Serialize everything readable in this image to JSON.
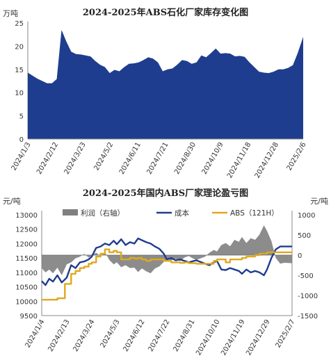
{
  "chart_data": [
    {
      "type": "area",
      "title": "2024-2025年ABS石化厂家库存变化图",
      "unit_label": "万吨",
      "ylim": [
        0,
        25
      ],
      "y_ticks": [
        0,
        5,
        10,
        15,
        20,
        25
      ],
      "x_tick_labels": [
        "2024/1/3",
        "2024/2/12",
        "2024/3/23",
        "2024/5/2",
        "2024/6/11",
        "2024/7/21",
        "2024/8/30",
        "2024/10/9",
        "2024/11/18",
        "2024/12/28",
        "2025/2/6"
      ],
      "x_range": [
        "2024-01-03",
        "2025-02-06"
      ],
      "color": "#1f3d8f",
      "points": [
        [
          "2024-01-03",
          14.3
        ],
        [
          "2024-01-17",
          13.0
        ],
        [
          "2024-01-31",
          12.0
        ],
        [
          "2024-02-07",
          12.0
        ],
        [
          "2024-02-14",
          12.9
        ],
        [
          "2024-02-21",
          23.5
        ],
        [
          "2024-02-28",
          21.0
        ],
        [
          "2024-03-06",
          18.8
        ],
        [
          "2024-03-13",
          18.3
        ],
        [
          "2024-03-20",
          18.2
        ],
        [
          "2024-03-27",
          18.0
        ],
        [
          "2024-04-03",
          17.8
        ],
        [
          "2024-04-10",
          16.8
        ],
        [
          "2024-04-17",
          16.0
        ],
        [
          "2024-04-24",
          15.5
        ],
        [
          "2024-05-01",
          14.2
        ],
        [
          "2024-05-08",
          14.9
        ],
        [
          "2024-05-15",
          14.6
        ],
        [
          "2024-05-22",
          15.5
        ],
        [
          "2024-05-29",
          16.2
        ],
        [
          "2024-06-05",
          16.3
        ],
        [
          "2024-06-12",
          16.5
        ],
        [
          "2024-06-19",
          17.0
        ],
        [
          "2024-06-26",
          17.6
        ],
        [
          "2024-07-03",
          17.3
        ],
        [
          "2024-07-10",
          16.5
        ],
        [
          "2024-07-17",
          14.6
        ],
        [
          "2024-07-24",
          15.0
        ],
        [
          "2024-07-31",
          15.2
        ],
        [
          "2024-08-07",
          16.0
        ],
        [
          "2024-08-14",
          17.0
        ],
        [
          "2024-08-21",
          16.8
        ],
        [
          "2024-08-28",
          16.2
        ],
        [
          "2024-09-04",
          16.5
        ],
        [
          "2024-09-11",
          18.0
        ],
        [
          "2024-09-18",
          17.6
        ],
        [
          "2024-09-25",
          18.5
        ],
        [
          "2024-10-02",
          19.5
        ],
        [
          "2024-10-09",
          18.4
        ],
        [
          "2024-10-16",
          18.5
        ],
        [
          "2024-10-23",
          18.4
        ],
        [
          "2024-10-30",
          17.8
        ],
        [
          "2024-11-06",
          17.9
        ],
        [
          "2024-11-13",
          17.7
        ],
        [
          "2024-11-20",
          16.5
        ],
        [
          "2024-11-27",
          15.5
        ],
        [
          "2024-12-04",
          14.5
        ],
        [
          "2024-12-11",
          14.3
        ],
        [
          "2024-12-18",
          14.2
        ],
        [
          "2024-12-25",
          14.5
        ],
        [
          "2025-01-01",
          15.0
        ],
        [
          "2025-01-08",
          15.0
        ],
        [
          "2025-01-15",
          15.3
        ],
        [
          "2025-01-22",
          15.9
        ],
        [
          "2025-01-29",
          18.5
        ],
        [
          "2025-02-06",
          22.0
        ]
      ]
    },
    {
      "type": "line",
      "title": "2024-2025年国内ABS厂家理论盈亏图",
      "left_unit": "元/吨",
      "right_unit": "元/吨",
      "ylim_left": [
        9500,
        13000
      ],
      "ylim_right": [
        -1500,
        1000
      ],
      "y_ticks_left": [
        9500,
        10000,
        10500,
        11000,
        11500,
        12000,
        12500,
        13000
      ],
      "y_ticks_right": [
        -1500,
        -1000,
        -500,
        0,
        500,
        1000
      ],
      "x_tick_labels": [
        "2024/1/4",
        "2024/2/13",
        "2024/3/24",
        "2024/5/3",
        "2024/6/12",
        "2024/7/22",
        "2024/8/31",
        "2024/10/10",
        "2024/11/19",
        "2024/12/29",
        "2025/2/7"
      ],
      "x_range": [
        "2024-01-04",
        "2025-02-07"
      ],
      "legend": [
        "利润（右轴）",
        "成本",
        "ABS（121H）"
      ],
      "colors": {
        "profit": "#808080",
        "cost": "#1f3d8f",
        "abs": "#e0a81c"
      },
      "series": [
        {
          "name": "利润（右轴）",
          "axis": "right",
          "points": [
            [
              "2024-01-04",
              -320
            ],
            [
              "2024-01-10",
              -430
            ],
            [
              "2024-01-16",
              -360
            ],
            [
              "2024-01-22",
              -450
            ],
            [
              "2024-01-29",
              -310
            ],
            [
              "2024-02-05",
              -500
            ],
            [
              "2024-02-13",
              -230
            ],
            [
              "2024-02-20",
              -180
            ],
            [
              "2024-02-27",
              -80
            ],
            [
              "2024-03-05",
              -40
            ],
            [
              "2024-03-12",
              30
            ],
            [
              "2024-03-19",
              -60
            ],
            [
              "2024-03-24",
              -10
            ],
            [
              "2024-03-31",
              60
            ],
            [
              "2024-04-07",
              -40
            ],
            [
              "2024-04-14",
              80
            ],
            [
              "2024-04-21",
              -120
            ],
            [
              "2024-04-28",
              -230
            ],
            [
              "2024-05-03",
              -180
            ],
            [
              "2024-05-10",
              -300
            ],
            [
              "2024-05-17",
              -250
            ],
            [
              "2024-05-24",
              -320
            ],
            [
              "2024-05-31",
              -310
            ],
            [
              "2024-06-06",
              -420
            ],
            [
              "2024-06-12",
              -330
            ],
            [
              "2024-06-19",
              -400
            ],
            [
              "2024-06-26",
              -450
            ],
            [
              "2024-07-03",
              -330
            ],
            [
              "2024-07-10",
              -280
            ],
            [
              "2024-07-17",
              -170
            ],
            [
              "2024-07-22",
              -100
            ],
            [
              "2024-07-29",
              -130
            ],
            [
              "2024-08-05",
              -90
            ],
            [
              "2024-08-12",
              -150
            ],
            [
              "2024-08-19",
              -60
            ],
            [
              "2024-08-26",
              -20
            ],
            [
              "2024-08-31",
              -70
            ],
            [
              "2024-09-07",
              -120
            ],
            [
              "2024-09-14",
              -80
            ],
            [
              "2024-09-21",
              -40
            ],
            [
              "2024-09-28",
              60
            ],
            [
              "2024-10-05",
              130
            ],
            [
              "2024-10-10",
              90
            ],
            [
              "2024-10-17",
              250
            ],
            [
              "2024-10-24",
              300
            ],
            [
              "2024-10-31",
              220
            ],
            [
              "2024-11-07",
              380
            ],
            [
              "2024-11-14",
              330
            ],
            [
              "2024-11-19",
              450
            ],
            [
              "2024-11-26",
              300
            ],
            [
              "2024-12-03",
              420
            ],
            [
              "2024-12-10",
              380
            ],
            [
              "2024-12-17",
              510
            ],
            [
              "2024-12-24",
              740
            ],
            [
              "2024-12-29",
              600
            ],
            [
              "2025-01-05",
              350
            ],
            [
              "2025-01-12",
              -70
            ],
            [
              "2025-01-19",
              -210
            ],
            [
              "2025-01-26",
              -190
            ],
            [
              "2025-02-07",
              -200
            ]
          ]
        },
        {
          "name": "成本",
          "axis": "left",
          "points": [
            [
              "2024-01-04",
              10700
            ],
            [
              "2024-01-10",
              10560
            ],
            [
              "2024-01-16",
              10780
            ],
            [
              "2024-01-22",
              10680
            ],
            [
              "2024-01-29",
              10900
            ],
            [
              "2024-02-05",
              10650
            ],
            [
              "2024-02-13",
              10820
            ],
            [
              "2024-02-20",
              11250
            ],
            [
              "2024-02-27",
              11150
            ],
            [
              "2024-03-05",
              11350
            ],
            [
              "2024-03-12",
              11380
            ],
            [
              "2024-03-19",
              11450
            ],
            [
              "2024-03-24",
              11550
            ],
            [
              "2024-03-31",
              11850
            ],
            [
              "2024-04-07",
              11900
            ],
            [
              "2024-04-14",
              12000
            ],
            [
              "2024-04-21",
              11950
            ],
            [
              "2024-04-28",
              12100
            ],
            [
              "2024-05-03",
              11980
            ],
            [
              "2024-05-10",
              12150
            ],
            [
              "2024-05-17",
              11950
            ],
            [
              "2024-05-24",
              12050
            ],
            [
              "2024-05-31",
              12000
            ],
            [
              "2024-06-06",
              12180
            ],
            [
              "2024-06-12",
              12120
            ],
            [
              "2024-06-19",
              12050
            ],
            [
              "2024-06-26",
              12000
            ],
            [
              "2024-07-03",
              11900
            ],
            [
              "2024-07-10",
              11820
            ],
            [
              "2024-07-17",
              11650
            ],
            [
              "2024-07-22",
              11450
            ],
            [
              "2024-07-29",
              11500
            ],
            [
              "2024-08-05",
              11420
            ],
            [
              "2024-08-12",
              11450
            ],
            [
              "2024-08-19",
              11400
            ],
            [
              "2024-08-26",
              11350
            ],
            [
              "2024-08-31",
              11380
            ],
            [
              "2024-09-07",
              11420
            ],
            [
              "2024-09-14",
              11360
            ],
            [
              "2024-09-21",
              11300
            ],
            [
              "2024-09-28",
              11250
            ],
            [
              "2024-10-05",
              11350
            ],
            [
              "2024-10-10",
              11400
            ],
            [
              "2024-10-17",
              11100
            ],
            [
              "2024-10-24",
              11080
            ],
            [
              "2024-10-31",
              11150
            ],
            [
              "2024-11-07",
              11100
            ],
            [
              "2024-11-14",
              11050
            ],
            [
              "2024-11-19",
              10950
            ],
            [
              "2024-11-26",
              11100
            ],
            [
              "2024-12-03",
              11000
            ],
            [
              "2024-12-10",
              11050
            ],
            [
              "2024-12-17",
              11000
            ],
            [
              "2024-12-24",
              10900
            ],
            [
              "2024-12-29",
              11100
            ],
            [
              "2025-01-05",
              11500
            ],
            [
              "2025-01-12",
              11800
            ],
            [
              "2025-01-19",
              11900
            ],
            [
              "2025-01-26",
              11900
            ],
            [
              "2025-02-07",
              11900
            ]
          ]
        },
        {
          "name": "ABS（121H）",
          "axis": "left",
          "points": [
            [
              "2024-01-04",
              10050
            ],
            [
              "2024-01-16",
              10050
            ],
            [
              "2024-01-29",
              10100
            ],
            [
              "2024-02-05",
              10100
            ],
            [
              "2024-02-10",
              10600
            ],
            [
              "2024-02-13",
              10600
            ],
            [
              "2024-02-20",
              10950
            ],
            [
              "2024-02-27",
              11050
            ],
            [
              "2024-03-05",
              11150
            ],
            [
              "2024-03-12",
              11200
            ],
            [
              "2024-03-19",
              11300
            ],
            [
              "2024-03-24",
              11350
            ],
            [
              "2024-03-31",
              11550
            ],
            [
              "2024-04-07",
              11650
            ],
            [
              "2024-04-14",
              11800
            ],
            [
              "2024-04-21",
              11700
            ],
            [
              "2024-04-28",
              11750
            ],
            [
              "2024-05-03",
              11700
            ],
            [
              "2024-05-10",
              11450
            ],
            [
              "2024-05-17",
              11450
            ],
            [
              "2024-05-24",
              11500
            ],
            [
              "2024-05-31",
              11480
            ],
            [
              "2024-06-06",
              11500
            ],
            [
              "2024-06-12",
              11450
            ],
            [
              "2024-06-19",
              11400
            ],
            [
              "2024-06-26",
              11450
            ],
            [
              "2024-07-03",
              11450
            ],
            [
              "2024-07-10",
              11450
            ],
            [
              "2024-07-17",
              11400
            ],
            [
              "2024-07-22",
              11400
            ],
            [
              "2024-07-29",
              11350
            ],
            [
              "2024-08-05",
              11350
            ],
            [
              "2024-08-12",
              11330
            ],
            [
              "2024-08-19",
              11350
            ],
            [
              "2024-08-26",
              11320
            ],
            [
              "2024-08-31",
              11320
            ],
            [
              "2024-09-07",
              11300
            ],
            [
              "2024-09-14",
              11300
            ],
            [
              "2024-09-21",
              11300
            ],
            [
              "2024-09-28",
              11300
            ],
            [
              "2024-10-05",
              11400
            ],
            [
              "2024-10-10",
              11450
            ],
            [
              "2024-10-17",
              11450
            ],
            [
              "2024-10-24",
              11350
            ],
            [
              "2024-10-31",
              11450
            ],
            [
              "2024-11-07",
              11450
            ],
            [
              "2024-11-14",
              11450
            ],
            [
              "2024-11-19",
              11500
            ],
            [
              "2024-11-26",
              11550
            ],
            [
              "2024-12-03",
              11550
            ],
            [
              "2024-12-10",
              11600
            ],
            [
              "2024-12-17",
              11650
            ],
            [
              "2024-12-24",
              11650
            ],
            [
              "2024-12-29",
              11700
            ],
            [
              "2025-01-05",
              11700
            ],
            [
              "2025-01-12",
              11700
            ],
            [
              "2025-01-19",
              11700
            ],
            [
              "2025-01-26",
              11700
            ],
            [
              "2025-02-07",
              11700
            ]
          ]
        }
      ]
    }
  ]
}
